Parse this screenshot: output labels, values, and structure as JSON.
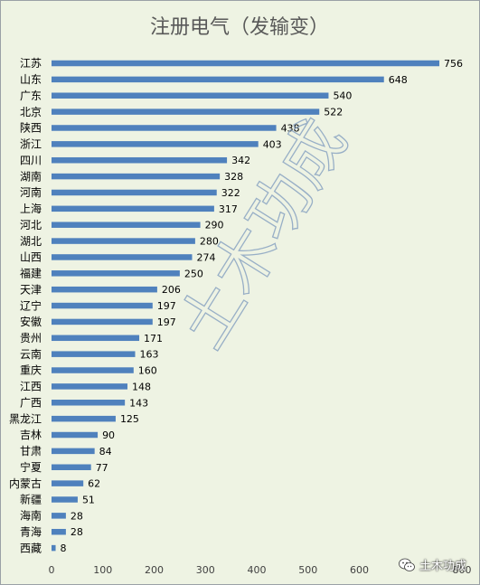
{
  "chart_data": {
    "type": "bar",
    "orientation": "horizontal",
    "title": "注册电气（发输变）",
    "categories": [
      "江苏",
      "山东",
      "广东",
      "北京",
      "陕西",
      "浙江",
      "四川",
      "湖南",
      "河南",
      "上海",
      "河北",
      "湖北",
      "山西",
      "福建",
      "天津",
      "辽宁",
      "安徽",
      "贵州",
      "云南",
      "重庆",
      "江西",
      "广西",
      "黑龙江",
      "吉林",
      "甘肃",
      "宁夏",
      "内蒙古",
      "新疆",
      "海南",
      "青海",
      "西藏"
    ],
    "values": [
      756,
      648,
      540,
      522,
      438,
      403,
      342,
      328,
      322,
      317,
      290,
      280,
      274,
      250,
      206,
      197,
      197,
      171,
      163,
      160,
      148,
      143,
      125,
      90,
      84,
      77,
      62,
      51,
      28,
      28,
      8
    ],
    "xlim": [
      0,
      800
    ],
    "xticks": [
      0,
      100,
      200,
      300,
      400,
      500,
      600,
      800
    ],
    "data_labels": true,
    "grid": false,
    "legend": "none",
    "bar_color": "#4f81bd",
    "background_color": "#eef3e3"
  },
  "watermark": "土木功成",
  "brand": {
    "icon": "wechat-icon",
    "label": "土木功成"
  }
}
